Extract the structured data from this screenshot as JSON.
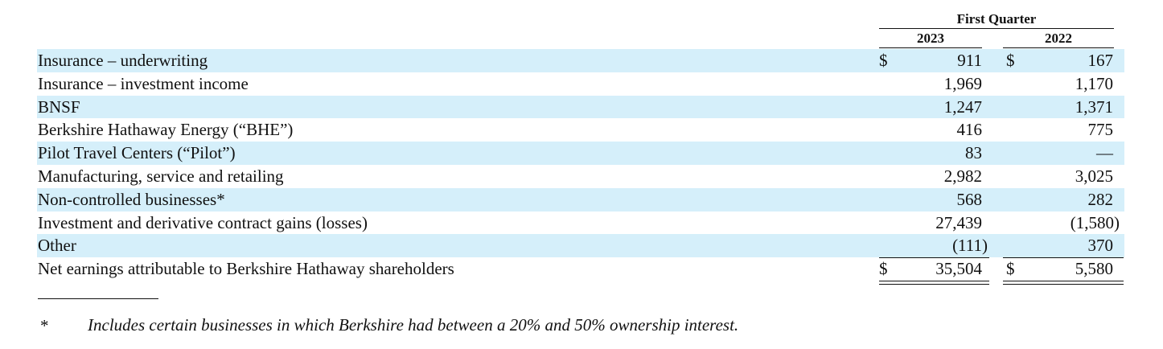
{
  "header": {
    "period_label": "First Quarter",
    "year_current": "2023",
    "year_prior": "2022"
  },
  "rows": [
    {
      "label": "Insurance – underwriting",
      "dollar": "$",
      "v2023": "911",
      "v2022": "167",
      "shaded": true
    },
    {
      "label": "Insurance – investment income",
      "dollar": "",
      "v2023": "1,969",
      "v2022": "1,170",
      "shaded": false
    },
    {
      "label": "BNSF",
      "dollar": "",
      "v2023": "1,247",
      "v2022": "1,371",
      "shaded": true
    },
    {
      "label": "Berkshire Hathaway Energy (“BHE”)",
      "dollar": "",
      "v2023": "416",
      "v2022": "775",
      "shaded": false
    },
    {
      "label": "Pilot Travel Centers (“Pilot”)",
      "dollar": "",
      "v2023": "83",
      "v2022": "—",
      "shaded": true
    },
    {
      "label": "Manufacturing, service and retailing",
      "dollar": "",
      "v2023": "2,982",
      "v2022": "3,025",
      "shaded": false
    },
    {
      "label": "Non-controlled businesses*",
      "dollar": "",
      "v2023": "568",
      "v2022": "282",
      "shaded": true
    },
    {
      "label": "Investment and derivative contract gains (losses)",
      "dollar": "",
      "v2023": "27,439",
      "v2022": "(1,580)",
      "shaded": false
    },
    {
      "label": "Other",
      "dollar": "",
      "v2023": "(111)",
      "v2022": "370",
      "shaded": true
    },
    {
      "label": "Net earnings attributable to Berkshire Hathaway shareholders",
      "dollar": "$",
      "v2023": "35,504",
      "v2022": "5,580",
      "shaded": false
    }
  ],
  "footnote": {
    "marker": "*",
    "text": "Includes certain businesses in which Berkshire had between a 20% and 50% ownership interest."
  }
}
